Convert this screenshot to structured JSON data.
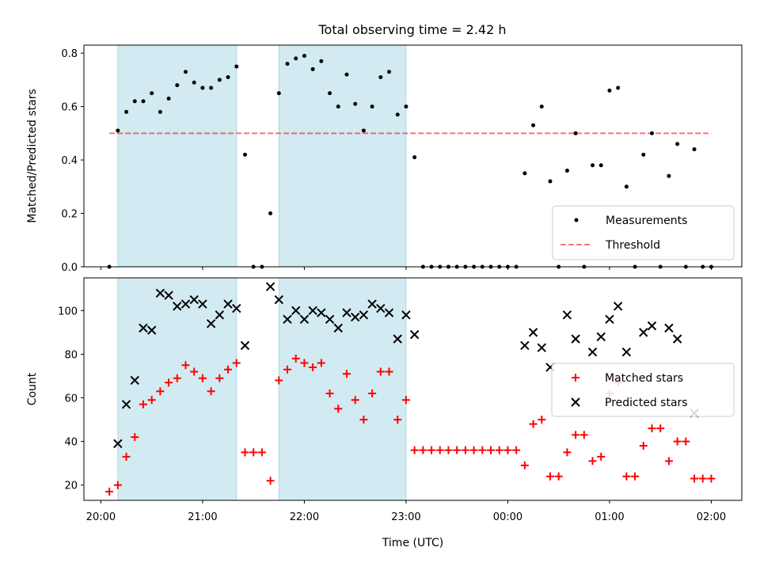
{
  "title": "Total observing time = 2.42 h",
  "colors": {
    "shade": "#add8e6",
    "measure": "#000000",
    "threshold": "#ff0000",
    "matched": "#ff0000",
    "predicted": "#000000"
  },
  "chart_data": [
    {
      "type": "scatter",
      "panel": "top",
      "title": "Total observing time = 2.42 h",
      "xlabel": "",
      "ylabel": "Matched/Predicted stars",
      "xlim": [
        "19:50",
        "02:18"
      ],
      "ylim": [
        0,
        0.83
      ],
      "yticks": [
        "0.0",
        "0.2",
        "0.4",
        "0.6",
        "0.8"
      ],
      "shaded_intervals": [
        [
          "20:10",
          "21:20"
        ],
        [
          "21:45",
          "23:00"
        ]
      ],
      "legend": {
        "position": "lower right",
        "entries": [
          "Measurements",
          "Threshold"
        ]
      },
      "threshold": {
        "name": "Threshold",
        "value": 0.5,
        "x_range": [
          "20:05",
          "02:00"
        ]
      },
      "series": [
        {
          "name": "Measurements",
          "marker": "dot",
          "points": [
            [
              "20:05",
              0
            ],
            [
              "20:10",
              0.51
            ],
            [
              "20:15",
              0.58
            ],
            [
              "20:20",
              0.62
            ],
            [
              "20:25",
              0.62
            ],
            [
              "20:30",
              0.65
            ],
            [
              "20:35",
              0.58
            ],
            [
              "20:40",
              0.63
            ],
            [
              "20:45",
              0.68
            ],
            [
              "20:50",
              0.73
            ],
            [
              "20:55",
              0.69
            ],
            [
              "21:00",
              0.67
            ],
            [
              "21:05",
              0.67
            ],
            [
              "21:10",
              0.7
            ],
            [
              "21:15",
              0.71
            ],
            [
              "21:20",
              0.75
            ],
            [
              "21:25",
              0.42
            ],
            [
              "21:30",
              0
            ],
            [
              "21:35",
              0
            ],
            [
              "21:40",
              0.2
            ],
            [
              "21:45",
              0.65
            ],
            [
              "21:50",
              0.76
            ],
            [
              "21:55",
              0.78
            ],
            [
              "22:00",
              0.79
            ],
            [
              "22:05",
              0.74
            ],
            [
              "22:10",
              0.77
            ],
            [
              "22:15",
              0.65
            ],
            [
              "22:20",
              0.6
            ],
            [
              "22:25",
              0.72
            ],
            [
              "22:30",
              0.61
            ],
            [
              "22:35",
              0.51
            ],
            [
              "22:40",
              0.6
            ],
            [
              "22:45",
              0.71
            ],
            [
              "22:50",
              0.73
            ],
            [
              "22:55",
              0.57
            ],
            [
              "23:00",
              0.6
            ],
            [
              "23:05",
              0.41
            ],
            [
              "23:10",
              0
            ],
            [
              "23:15",
              0
            ],
            [
              "23:20",
              0
            ],
            [
              "23:25",
              0
            ],
            [
              "23:30",
              0
            ],
            [
              "23:35",
              0
            ],
            [
              "23:40",
              0
            ],
            [
              "23:45",
              0
            ],
            [
              "23:50",
              0
            ],
            [
              "23:55",
              0
            ],
            [
              "00:00",
              0
            ],
            [
              "00:05",
              0
            ],
            [
              "00:10",
              0.35
            ],
            [
              "00:15",
              0.53
            ],
            [
              "00:20",
              0.6
            ],
            [
              "00:25",
              0.32
            ],
            [
              "00:30",
              0
            ],
            [
              "00:35",
              0.36
            ],
            [
              "00:40",
              0.5
            ],
            [
              "00:45",
              0
            ],
            [
              "00:50",
              0.38
            ],
            [
              "00:55",
              0.38
            ],
            [
              "01:00",
              0.66
            ],
            [
              "01:05",
              0.67
            ],
            [
              "01:10",
              0.3
            ],
            [
              "01:15",
              0
            ],
            [
              "01:20",
              0.42
            ],
            [
              "01:25",
              0.5
            ],
            [
              "01:30",
              0
            ],
            [
              "01:35",
              0.34
            ],
            [
              "01:40",
              0.46
            ],
            [
              "01:45",
              0
            ],
            [
              "01:50",
              0.44
            ],
            [
              "01:55",
              0
            ],
            [
              "02:00",
              0
            ]
          ]
        }
      ]
    },
    {
      "type": "scatter",
      "panel": "bottom",
      "xlabel": "Time (UTC)",
      "ylabel": "Count",
      "xlim": [
        "19:50",
        "02:18"
      ],
      "ylim": [
        13,
        115
      ],
      "yticks": [
        "20",
        "40",
        "60",
        "80",
        "100"
      ],
      "xticks": [
        "20:00",
        "21:00",
        "22:00",
        "23:00",
        "00:00",
        "01:00",
        "02:00"
      ],
      "shaded_intervals": [
        [
          "20:10",
          "21:20"
        ],
        [
          "21:45",
          "23:00"
        ]
      ],
      "legend": {
        "position": "center right",
        "entries": [
          "Matched stars",
          "Predicted stars"
        ]
      },
      "series": [
        {
          "name": "Matched stars",
          "marker": "plus",
          "points": [
            [
              "20:05",
              17
            ],
            [
              "20:10",
              20
            ],
            [
              "20:15",
              33
            ],
            [
              "20:20",
              42
            ],
            [
              "20:25",
              57
            ],
            [
              "20:30",
              59
            ],
            [
              "20:35",
              63
            ],
            [
              "20:40",
              67
            ],
            [
              "20:45",
              69
            ],
            [
              "20:50",
              75
            ],
            [
              "20:55",
              72
            ],
            [
              "21:00",
              69
            ],
            [
              "21:05",
              63
            ],
            [
              "21:10",
              69
            ],
            [
              "21:15",
              73
            ],
            [
              "21:20",
              76
            ],
            [
              "21:25",
              35
            ],
            [
              "21:30",
              35
            ],
            [
              "21:35",
              35
            ],
            [
              "21:40",
              22
            ],
            [
              "21:45",
              68
            ],
            [
              "21:50",
              73
            ],
            [
              "21:55",
              78
            ],
            [
              "22:00",
              76
            ],
            [
              "22:05",
              74
            ],
            [
              "22:10",
              76
            ],
            [
              "22:15",
              62
            ],
            [
              "22:20",
              55
            ],
            [
              "22:25",
              71
            ],
            [
              "22:30",
              59
            ],
            [
              "22:35",
              50
            ],
            [
              "22:40",
              62
            ],
            [
              "22:45",
              72
            ],
            [
              "22:50",
              72
            ],
            [
              "22:55",
              50
            ],
            [
              "23:00",
              59
            ],
            [
              "23:05",
              36
            ],
            [
              "23:10",
              36
            ],
            [
              "23:15",
              36
            ],
            [
              "23:20",
              36
            ],
            [
              "23:25",
              36
            ],
            [
              "23:30",
              36
            ],
            [
              "23:35",
              36
            ],
            [
              "23:40",
              36
            ],
            [
              "23:45",
              36
            ],
            [
              "23:50",
              36
            ],
            [
              "23:55",
              36
            ],
            [
              "00:00",
              36
            ],
            [
              "00:05",
              36
            ],
            [
              "00:10",
              29
            ],
            [
              "00:15",
              48
            ],
            [
              "00:20",
              50
            ],
            [
              "00:25",
              24
            ],
            [
              "00:30",
              24
            ],
            [
              "00:35",
              35
            ],
            [
              "00:40",
              43
            ],
            [
              "00:45",
              43
            ],
            [
              "00:50",
              31
            ],
            [
              "00:55",
              33
            ],
            [
              "01:00",
              62
            ],
            [
              "01:05",
              67
            ],
            [
              "01:10",
              24
            ],
            [
              "01:15",
              24
            ],
            [
              "01:20",
              38
            ],
            [
              "01:25",
              46
            ],
            [
              "01:30",
              46
            ],
            [
              "01:35",
              31
            ],
            [
              "01:40",
              40
            ],
            [
              "01:45",
              40
            ],
            [
              "01:50",
              23
            ],
            [
              "01:55",
              23
            ],
            [
              "02:00",
              23
            ]
          ]
        },
        {
          "name": "Predicted stars",
          "marker": "x",
          "points": [
            [
              "20:10",
              39
            ],
            [
              "20:15",
              57
            ],
            [
              "20:20",
              68
            ],
            [
              "20:25",
              92
            ],
            [
              "20:30",
              91
            ],
            [
              "20:35",
              108
            ],
            [
              "20:40",
              107
            ],
            [
              "20:45",
              102
            ],
            [
              "20:50",
              103
            ],
            [
              "20:55",
              105
            ],
            [
              "21:00",
              103
            ],
            [
              "21:05",
              94
            ],
            [
              "21:10",
              98
            ],
            [
              "21:15",
              103
            ],
            [
              "21:20",
              101
            ],
            [
              "21:25",
              84
            ],
            [
              "21:40",
              111
            ],
            [
              "21:45",
              105
            ],
            [
              "21:50",
              96
            ],
            [
              "21:55",
              100
            ],
            [
              "22:00",
              96
            ],
            [
              "22:05",
              100
            ],
            [
              "22:10",
              99
            ],
            [
              "22:15",
              96
            ],
            [
              "22:20",
              92
            ],
            [
              "22:25",
              99
            ],
            [
              "22:30",
              97
            ],
            [
              "22:35",
              98
            ],
            [
              "22:40",
              103
            ],
            [
              "22:45",
              101
            ],
            [
              "22:50",
              99
            ],
            [
              "22:55",
              87
            ],
            [
              "23:00",
              98
            ],
            [
              "23:05",
              89
            ],
            [
              "00:10",
              84
            ],
            [
              "00:15",
              90
            ],
            [
              "00:20",
              83
            ],
            [
              "00:25",
              74
            ],
            [
              "00:35",
              98
            ],
            [
              "00:40",
              87
            ],
            [
              "00:50",
              81
            ],
            [
              "00:55",
              88
            ],
            [
              "01:00",
              96
            ],
            [
              "01:05",
              102
            ],
            [
              "01:10",
              81
            ],
            [
              "01:20",
              90
            ],
            [
              "01:25",
              93
            ],
            [
              "01:35",
              92
            ],
            [
              "01:40",
              87
            ],
            [
              "01:50",
              53
            ]
          ]
        }
      ]
    }
  ]
}
